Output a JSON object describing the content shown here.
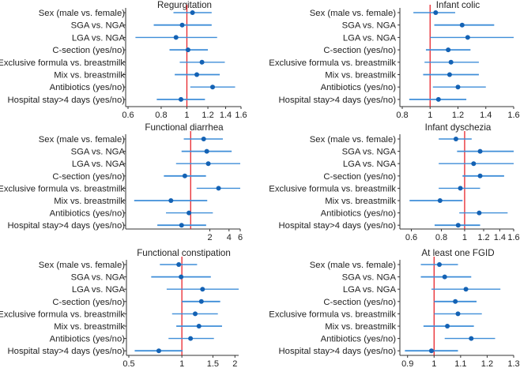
{
  "chart_data": [
    {
      "type": "forest",
      "title": "Regurgitation",
      "scale": "log",
      "xlim": [
        0.6,
        1.6
      ],
      "ticks": [
        0.6,
        0.8,
        1,
        1.2,
        1.4,
        1.6
      ],
      "tick_labels": [
        "0.6",
        "0.8",
        "1",
        "1.2",
        "1.4",
        "1.6"
      ],
      "reference": 1,
      "categories": [
        "Sex (male vs. female)",
        "SGA vs. NGA",
        "LGA vs. NGA",
        "C-section (yes/no)",
        "Exclusive formula vs. breastmilk",
        "Mix vs. breastmilk",
        "Antibiotics (yes/no)",
        "Hospital stay>4 days (yes/no)"
      ],
      "estimate": [
        1.05,
        0.96,
        0.91,
        1.01,
        1.14,
        1.09,
        1.25,
        0.95
      ],
      "ci_low": [
        0.89,
        0.75,
        0.64,
        0.86,
        0.94,
        0.9,
        1.03,
        0.77
      ],
      "ci_high": [
        1.24,
        1.24,
        1.3,
        1.2,
        1.39,
        1.33,
        1.52,
        1.17
      ]
    },
    {
      "type": "forest",
      "title": "Infant colic",
      "scale": "linear",
      "xlim": [
        0.8,
        1.6
      ],
      "ticks": [
        0.8,
        1,
        1.2,
        1.4,
        1.6
      ],
      "tick_labels": [
        "0.8",
        "1",
        "1.2",
        "1.4",
        "1.6"
      ],
      "reference": 1,
      "categories": [
        "Sex (male vs. female)",
        "SGA vs. NGA",
        "LGA vs. NGA",
        "C-section (yes/no)",
        "Exclusive formula vs. breastmilk",
        "Mix vs. breastmilk",
        "Antibiotics (yes/no)",
        "Hospital stay>4 days (yes/no)"
      ],
      "estimate": [
        1.04,
        1.23,
        1.27,
        1.13,
        1.15,
        1.14,
        1.2,
        1.06
      ],
      "ci_low": [
        0.88,
        1.03,
        1.0,
        0.97,
        0.96,
        0.95,
        1.02,
        0.85
      ],
      "ci_high": [
        1.18,
        1.46,
        1.6,
        1.29,
        1.35,
        1.35,
        1.4,
        1.26
      ]
    },
    {
      "type": "forest",
      "title": "Functional diarrhea",
      "scale": "log",
      "xlim": [
        0.104,
        6
      ],
      "ticks": [
        2,
        4,
        6
      ],
      "tick_labels": [
        "2",
        "4",
        "6"
      ],
      "reference": 1,
      "categories": [
        "Sex (male vs. female)",
        "SGA vs. NGA",
        "LGA vs. NGA",
        "C-section (yes/no)",
        "Exclusive formula vs. breastmilk",
        "Mix vs. breastmilk",
        "Antibiotics (yes/no)",
        "Hospital stay>4 days (yes/no)"
      ],
      "estimate": [
        1.6,
        1.79,
        1.89,
        0.81,
        2.74,
        0.49,
        0.94,
        0.72
      ],
      "ci_low": [
        0.78,
        0.72,
        0.59,
        0.38,
        1.24,
        0.13,
        0.41,
        0.3
      ],
      "ci_high": [
        3.2,
        4.4,
        6.0,
        1.74,
        6.0,
        1.82,
        2.23,
        1.75
      ]
    },
    {
      "type": "forest",
      "title": "Infant dyschezia",
      "scale": "log",
      "xlim": [
        0.55,
        1.6
      ],
      "ticks": [
        0.6,
        0.8,
        1,
        1.2,
        1.4,
        1.6
      ],
      "tick_labels": [
        "0.6",
        "0.8",
        "1",
        "1.2",
        "1.4",
        "1.6"
      ],
      "reference": 1,
      "categories": [
        "Sex (male vs. female)",
        "SGA vs. NGA",
        "LGA vs. NGA",
        "C-section (yes/no)",
        "Exclusive formula vs. breastmilk",
        "Mix vs. breastmilk",
        "Antibiotics (yes/no)",
        "Hospital stay>4 days (yes/no)"
      ],
      "estimate": [
        0.92,
        1.16,
        1.09,
        1.16,
        0.96,
        0.79,
        1.15,
        0.94
      ],
      "ci_low": [
        0.78,
        0.93,
        0.78,
        0.98,
        0.78,
        0.59,
        0.95,
        0.75
      ],
      "ci_high": [
        1.07,
        1.6,
        1.6,
        1.46,
        1.16,
        0.98,
        1.51,
        1.16
      ]
    },
    {
      "type": "forest",
      "title": "Functional constipation",
      "scale": "log",
      "xlim": [
        0.5,
        2.1
      ],
      "ticks": [
        0.5,
        1,
        1.5,
        2
      ],
      "tick_labels": [
        "0.5",
        "1",
        "1.5",
        "2"
      ],
      "reference": 1,
      "categories": [
        "Sex (male vs. female)",
        "SGA vs. NGA",
        "LGA vs. NGA",
        "C-section (yes/no)",
        "Exclusive formula vs. breastmilk",
        "Mix vs. breastmilk",
        "Antibiotics (yes/no)",
        "Hospital stay>4 days (yes/no)"
      ],
      "estimate": [
        0.96,
        0.99,
        1.31,
        1.29,
        1.19,
        1.25,
        1.12,
        0.74
      ],
      "ci_low": [
        0.75,
        0.67,
        0.82,
        1.0,
        0.88,
        0.93,
        0.84,
        0.54
      ],
      "ci_high": [
        1.22,
        1.46,
        2.1,
        1.65,
        1.6,
        1.69,
        1.52,
        1.01
      ]
    },
    {
      "type": "forest",
      "title": "At least one FGID",
      "scale": "linear",
      "xlim": [
        0.88,
        1.3
      ],
      "ticks": [
        0.9,
        1,
        1.1,
        1.2,
        1.3
      ],
      "tick_labels": [
        "0.9",
        "1",
        "1.1",
        "1.2",
        "1.3"
      ],
      "reference": 1,
      "categories": [
        "Sex (male vs. female)",
        "SGA vs. NGA",
        "LGA vs. NGA",
        "C-section (yes/no)",
        "Exclusive formula vs. breastmilk",
        "Mix vs. breastmilk",
        "Antibiotics (yes/no)",
        "Hospital stay>4 days (yes/no)"
      ],
      "estimate": [
        1.02,
        1.04,
        1.12,
        1.08,
        1.09,
        1.05,
        1.14,
        0.99
      ],
      "ci_low": [
        0.95,
        0.95,
        0.99,
        1.0,
        1.0,
        0.96,
        1.04,
        0.89
      ],
      "ci_high": [
        1.09,
        1.14,
        1.25,
        1.16,
        1.18,
        1.15,
        1.23,
        1.09
      ]
    }
  ],
  "colors": {
    "ci": "#3f8ed8",
    "point": "#1462b4",
    "reference": "#e8242a",
    "axis": "#333333"
  }
}
